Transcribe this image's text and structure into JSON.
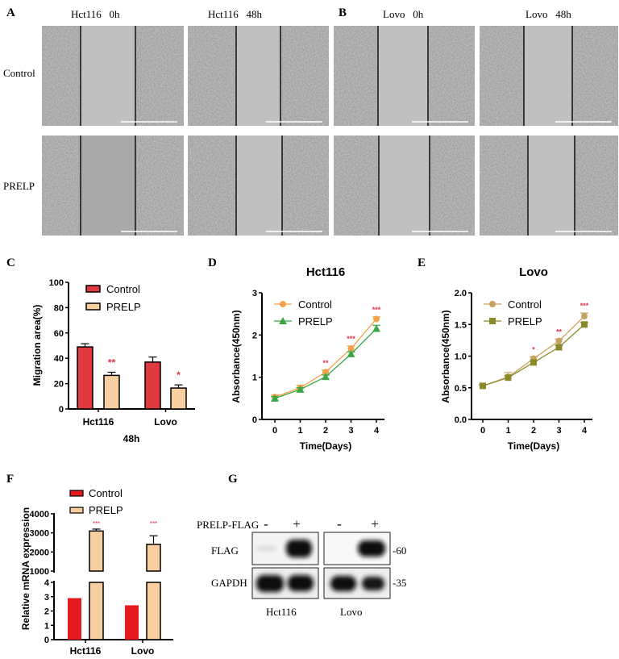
{
  "panel_a": {
    "label": "A",
    "columns": [
      "Hct116   0h",
      "Hct116   48h"
    ],
    "rows": [
      "Control",
      "PRELP"
    ]
  },
  "panel_b": {
    "label": "B",
    "columns": [
      "Lovo   0h",
      "Lovo   48h"
    ]
  },
  "colors": {
    "control_red": "#e03a3e",
    "prelp_peach": "#f8cfa0",
    "d_control": "#f4a24a",
    "d_prelp": "#3aa845",
    "e_control": "#c8a060",
    "e_prelp": "#8a8a2a",
    "f_control": "#e41a1c",
    "significance": "#e0304a"
  },
  "chart_data": [
    {
      "id": "C",
      "panel_label": "C",
      "type": "bar",
      "categories": [
        "Hct116",
        "Lovo"
      ],
      "series": [
        {
          "name": "Control",
          "values": [
            49,
            37
          ],
          "errors": [
            2.5,
            4
          ]
        },
        {
          "name": "PRELP",
          "values": [
            26.5,
            16.5
          ],
          "errors": [
            2.5,
            2.5
          ]
        }
      ],
      "significance": [
        "**",
        "*"
      ],
      "xlabel": "48h",
      "ylabel": "Migration area(%)",
      "ylim": [
        0,
        100
      ],
      "yticks": [
        0,
        20,
        40,
        60,
        80,
        100
      ],
      "legend": "top-right"
    },
    {
      "id": "D",
      "panel_label": "D",
      "type": "line",
      "title": "Hct116",
      "x": [
        0,
        1,
        2,
        3,
        4
      ],
      "series": [
        {
          "name": "Control",
          "values": [
            0.53,
            0.75,
            1.12,
            1.68,
            2.38
          ],
          "errors": [
            0.05,
            0.06,
            0.05,
            0.06,
            0.05
          ],
          "marker": "circle"
        },
        {
          "name": "PRELP",
          "values": [
            0.5,
            0.71,
            1.01,
            1.55,
            2.15
          ],
          "errors": [
            0.04,
            0.04,
            0.04,
            0.05,
            0.08
          ],
          "marker": "triangle"
        }
      ],
      "significance": [
        "",
        "",
        "**",
        "***",
        "***"
      ],
      "xlabel": "Time(Days)",
      "ylabel": "Absorbance(450nm)",
      "ylim": [
        0,
        3
      ],
      "yticks": [
        0,
        1,
        2,
        3
      ],
      "legend": "top-left"
    },
    {
      "id": "E",
      "panel_label": "E",
      "type": "line",
      "title": "Lovo",
      "x": [
        0,
        1,
        2,
        3,
        4
      ],
      "series": [
        {
          "name": "Control",
          "values": [
            0.53,
            0.67,
            0.96,
            1.24,
            1.63
          ],
          "errors": [
            0.02,
            0.07,
            0.03,
            0.03,
            0.05
          ],
          "marker": "circle"
        },
        {
          "name": "PRELP",
          "values": [
            0.53,
            0.66,
            0.9,
            1.14,
            1.5
          ],
          "errors": [
            0.02,
            0.03,
            0.02,
            0.03,
            0.03
          ],
          "marker": "square"
        }
      ],
      "significance": [
        "",
        "",
        "*",
        "**",
        "***"
      ],
      "xlabel": "Time(Days)",
      "ylabel": "Absorbance(450nm)",
      "ylim": [
        0,
        2.0
      ],
      "yticks": [
        "0.0",
        "0.5",
        "1.0",
        "1.5",
        "2.0"
      ],
      "legend": "top-left"
    },
    {
      "id": "F",
      "panel_label": "F",
      "type": "bar",
      "categories": [
        "Hct116",
        "Lovo"
      ],
      "series": [
        {
          "name": "Control",
          "values": [
            2.9,
            2.4
          ]
        },
        {
          "name": "PRELP",
          "values": [
            3100,
            2400
          ],
          "errors": [
            100,
            450
          ]
        }
      ],
      "significance": [
        "***",
        "***"
      ],
      "ylabel": "Relative  mRNA expression",
      "axis_break": {
        "lower": [
          0,
          4
        ],
        "upper": [
          1000,
          4000
        ]
      },
      "yticks_lower": [
        0,
        1,
        2,
        3,
        4
      ],
      "yticks_upper": [
        1000,
        2000,
        3000,
        4000
      ],
      "legend": "top"
    }
  ],
  "panel_g": {
    "label": "G",
    "treatment_label": "PRELP-FLAG",
    "lanes": [
      "-",
      "+",
      "-",
      "+"
    ],
    "rows": [
      "FLAG",
      "GAPDH"
    ],
    "markers": [
      "-60",
      "-35"
    ],
    "cell_lines": [
      "Hct116",
      "Lovo"
    ]
  }
}
